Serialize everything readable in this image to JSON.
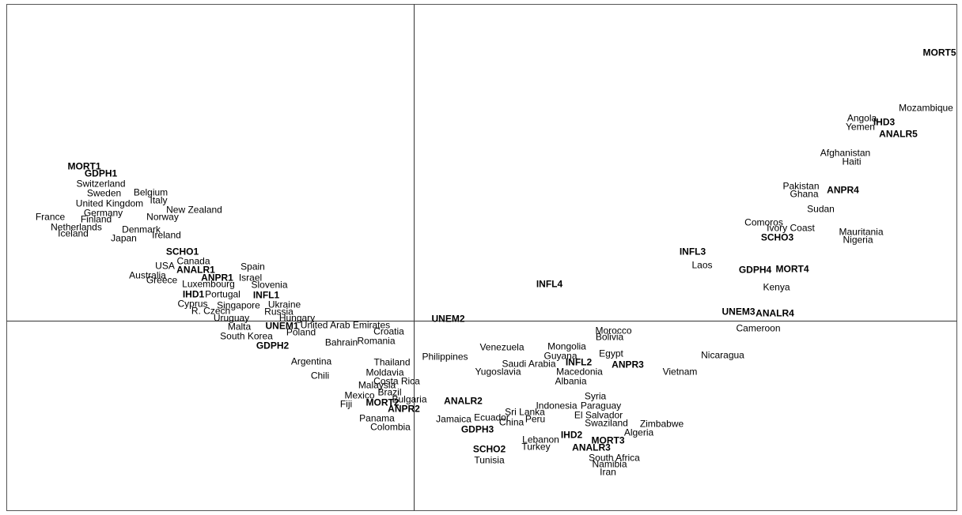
{
  "chart_data": {
    "type": "scatter",
    "title": "",
    "xlabel": "",
    "ylabel": "",
    "xlim": [
      -515,
      686
    ],
    "ylim": [
      -240,
      401
    ],
    "axes_lines": true,
    "grid": false,
    "legend": "none",
    "series": [
      {
        "kind": "countries",
        "points": [
          {
            "label": "Switzerland",
            "x": -396,
            "y": 173
          },
          {
            "label": "Sweden",
            "x": -392,
            "y": 161
          },
          {
            "label": "Belgium",
            "x": -333,
            "y": 162
          },
          {
            "label": "Italy",
            "x": -323,
            "y": 152
          },
          {
            "label": "United Kingdom",
            "x": -385,
            "y": 148
          },
          {
            "label": "New Zealand",
            "x": -278,
            "y": 140
          },
          {
            "label": "Germany",
            "x": -393,
            "y": 136
          },
          {
            "label": "Norway",
            "x": -318,
            "y": 131
          },
          {
            "label": "France",
            "x": -460,
            "y": 131
          },
          {
            "label": "Finland",
            "x": -402,
            "y": 128
          },
          {
            "label": "Netherlands",
            "x": -427,
            "y": 118
          },
          {
            "label": "Denmark",
            "x": -345,
            "y": 115
          },
          {
            "label": "Iceland",
            "x": -431,
            "y": 110
          },
          {
            "label": "Ireland",
            "x": -313,
            "y": 108
          },
          {
            "label": "Japan",
            "x": -367,
            "y": 104
          },
          {
            "label": "Canada",
            "x": -279,
            "y": 75
          },
          {
            "label": "USA",
            "x": -315,
            "y": 69
          },
          {
            "label": "Spain",
            "x": -204,
            "y": 68
          },
          {
            "label": "Australia",
            "x": -337,
            "y": 57
          },
          {
            "label": "Israel",
            "x": -207,
            "y": 54
          },
          {
            "label": "Greece",
            "x": -319,
            "y": 51
          },
          {
            "label": "Luxembourg",
            "x": -260,
            "y": 46
          },
          {
            "label": "Slovenia",
            "x": -183,
            "y": 45
          },
          {
            "label": "Portugal",
            "x": -242,
            "y": 33
          },
          {
            "label": "Cyprus",
            "x": -280,
            "y": 21
          },
          {
            "label": "Singapore",
            "x": -222,
            "y": 19
          },
          {
            "label": "Ukraine",
            "x": -164,
            "y": 20
          },
          {
            "label": "R. Czech",
            "x": -257,
            "y": 12
          },
          {
            "label": "Russia",
            "x": -171,
            "y": 11
          },
          {
            "label": "Uruguay",
            "x": -231,
            "y": 3
          },
          {
            "label": "Hungary",
            "x": -148,
            "y": 3
          },
          {
            "label": "Malta",
            "x": -221,
            "y": -8
          },
          {
            "label": "United Arab Emirates",
            "x": -87,
            "y": -6
          },
          {
            "label": "Poland",
            "x": -143,
            "y": -15
          },
          {
            "label": "Croatia",
            "x": -32,
            "y": -14
          },
          {
            "label": "South Korea",
            "x": -212,
            "y": -20
          },
          {
            "label": "Bahrain",
            "x": -92,
            "y": -28
          },
          {
            "label": "Romania",
            "x": -48,
            "y": -26
          },
          {
            "label": "Argentina",
            "x": -130,
            "y": -52
          },
          {
            "label": "Chili",
            "x": -119,
            "y": -70
          },
          {
            "label": "Thailand",
            "x": -28,
            "y": -53
          },
          {
            "label": "Moldavia",
            "x": -37,
            "y": -66
          },
          {
            "label": "Costa Rica",
            "x": -22,
            "y": -77
          },
          {
            "label": "Malaysia",
            "x": -47,
            "y": -82
          },
          {
            "label": "Brazil",
            "x": -31,
            "y": -91
          },
          {
            "label": "Mexico",
            "x": -69,
            "y": -95
          },
          {
            "label": "Bulgaria",
            "x": -6,
            "y": -100
          },
          {
            "label": "Fiji",
            "x": -86,
            "y": -106
          },
          {
            "label": "Panama",
            "x": -47,
            "y": -124
          },
          {
            "label": "Colombia",
            "x": -30,
            "y": -135
          },
          {
            "label": "Philippines",
            "x": 39,
            "y": -46
          },
          {
            "label": "Venezuela",
            "x": 111,
            "y": -34
          },
          {
            "label": "Saudi Arabia",
            "x": 145,
            "y": -55
          },
          {
            "label": "Yugoslavia",
            "x": 106,
            "y": -65
          },
          {
            "label": "Mongolia",
            "x": 193,
            "y": -33
          },
          {
            "label": "Guyana",
            "x": 185,
            "y": -45
          },
          {
            "label": "Macedonia",
            "x": 209,
            "y": -65
          },
          {
            "label": "Albania",
            "x": 198,
            "y": -77
          },
          {
            "label": "Morocco",
            "x": 252,
            "y": -13
          },
          {
            "label": "Bolivia",
            "x": 247,
            "y": -21
          },
          {
            "label": "Egypt",
            "x": 249,
            "y": -42
          },
          {
            "label": "Nicaragua",
            "x": 390,
            "y": -44
          },
          {
            "label": "Vietnam",
            "x": 336,
            "y": -65
          },
          {
            "label": "Cameroon",
            "x": 435,
            "y": -10
          },
          {
            "label": "Syria",
            "x": 229,
            "y": -96
          },
          {
            "label": "Indonesia",
            "x": 180,
            "y": -108
          },
          {
            "label": "Paraguay",
            "x": 236,
            "y": -108
          },
          {
            "label": "El Salvador",
            "x": 233,
            "y": -120
          },
          {
            "label": "Swaziland",
            "x": 243,
            "y": -130
          },
          {
            "label": "Zimbabwe",
            "x": 313,
            "y": -131
          },
          {
            "label": "Algeria",
            "x": 284,
            "y": -142
          },
          {
            "label": "Sri Lanka",
            "x": 140,
            "y": -116
          },
          {
            "label": "Peru",
            "x": 153,
            "y": -125
          },
          {
            "label": "China",
            "x": 123,
            "y": -129
          },
          {
            "label": "Ecuador",
            "x": 98,
            "y": -123
          },
          {
            "label": "Jamaica",
            "x": 50,
            "y": -125
          },
          {
            "label": "Lebanon",
            "x": 160,
            "y": -151
          },
          {
            "label": "Turkey",
            "x": 154,
            "y": -160
          },
          {
            "label": "Tunisia",
            "x": 95,
            "y": -177
          },
          {
            "label": "South Africa",
            "x": 253,
            "y": -174
          },
          {
            "label": "Namibia",
            "x": 247,
            "y": -182
          },
          {
            "label": "Iran",
            "x": 245,
            "y": -192
          },
          {
            "label": "Mozambique",
            "x": 647,
            "y": 269
          },
          {
            "label": "Angola",
            "x": 566,
            "y": 256
          },
          {
            "label": "Yemen",
            "x": 564,
            "y": 245
          },
          {
            "label": "Afghanistan",
            "x": 545,
            "y": 212
          },
          {
            "label": "Haiti",
            "x": 553,
            "y": 201
          },
          {
            "label": "Pakistan",
            "x": 489,
            "y": 170
          },
          {
            "label": "Ghana",
            "x": 493,
            "y": 160
          },
          {
            "label": "Sudan",
            "x": 514,
            "y": 141
          },
          {
            "label": "Comoros",
            "x": 442,
            "y": 124
          },
          {
            "label": "Ivory Coast",
            "x": 476,
            "y": 117
          },
          {
            "label": "Mauritania",
            "x": 565,
            "y": 112
          },
          {
            "label": "Nigeria",
            "x": 561,
            "y": 102
          },
          {
            "label": "Laos",
            "x": 364,
            "y": 70
          },
          {
            "label": "Kenya",
            "x": 458,
            "y": 42
          }
        ]
      },
      {
        "kind": "variable-categories",
        "points": [
          {
            "label": "MORT1",
            "x": -417,
            "y": 195
          },
          {
            "label": "GDPH1",
            "x": -396,
            "y": 186
          },
          {
            "label": "SCHO1",
            "x": -293,
            "y": 87
          },
          {
            "label": "ANALR1",
            "x": -276,
            "y": 64
          },
          {
            "label": "ANPR1",
            "x": -249,
            "y": 54
          },
          {
            "label": "INFL1",
            "x": -187,
            "y": 32
          },
          {
            "label": "IHD1",
            "x": -279,
            "y": 33
          },
          {
            "label": "UNEM1",
            "x": -167,
            "y": -7
          },
          {
            "label": "GDPH2",
            "x": -179,
            "y": -32
          },
          {
            "label": "UNEM2",
            "x": 43,
            "y": 2
          },
          {
            "label": "INFL4",
            "x": 171,
            "y": 46
          },
          {
            "label": "ANALR2",
            "x": 62,
            "y": -102
          },
          {
            "label": "MORT2",
            "x": -40,
            "y": -104
          },
          {
            "label": "ANPR2",
            "x": -13,
            "y": -112
          },
          {
            "label": "GDPH3",
            "x": 80,
            "y": -138
          },
          {
            "label": "SCHO2",
            "x": 95,
            "y": -163
          },
          {
            "label": "INFL2",
            "x": 208,
            "y": -53
          },
          {
            "label": "ANPR3",
            "x": 270,
            "y": -56
          },
          {
            "label": "IHD2",
            "x": 199,
            "y": -145
          },
          {
            "label": "MORT3",
            "x": 245,
            "y": -152
          },
          {
            "label": "ANALR3",
            "x": 224,
            "y": -161
          },
          {
            "label": "UNEM3",
            "x": 410,
            "y": 11
          },
          {
            "label": "ANALR4",
            "x": 456,
            "y": 9
          },
          {
            "label": "INFL3",
            "x": 352,
            "y": 87
          },
          {
            "label": "GDPH4",
            "x": 431,
            "y": 64
          },
          {
            "label": "MORT4",
            "x": 478,
            "y": 65
          },
          {
            "label": "SCHO3",
            "x": 459,
            "y": 105
          },
          {
            "label": "ANPR4",
            "x": 542,
            "y": 165
          },
          {
            "label": "IHD3",
            "x": 594,
            "y": 251
          },
          {
            "label": "ANALR5",
            "x": 612,
            "y": 236
          },
          {
            "label": "MORT5",
            "x": 664,
            "y": 339
          }
        ]
      }
    ]
  }
}
